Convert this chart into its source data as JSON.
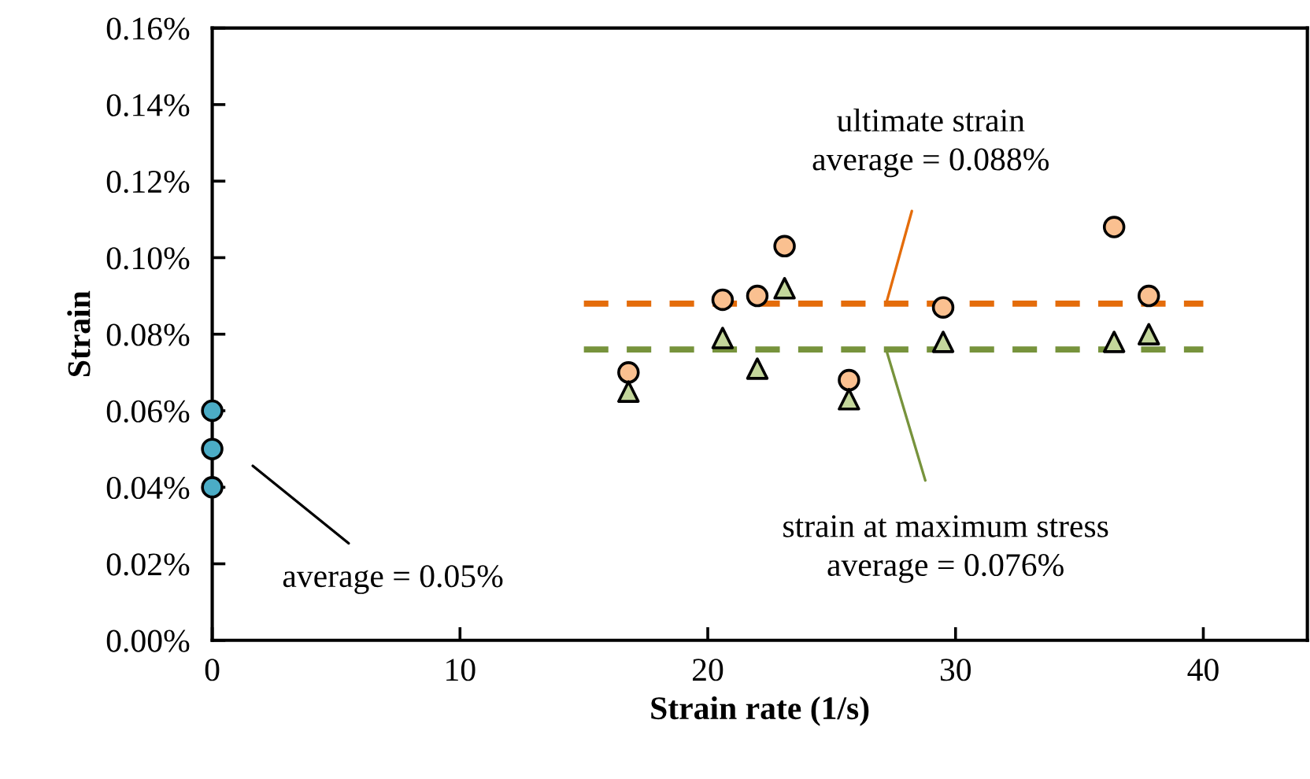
{
  "chart_data": {
    "type": "scatter",
    "xlabel": "Strain rate (1/s)",
    "ylabel": "Strain",
    "xlim": [
      0,
      44.2
    ],
    "xticks": [
      0,
      10,
      20,
      30,
      40
    ],
    "ylim": [
      0,
      0.16
    ],
    "yticks": [
      {
        "value": 0,
        "label": "0.00%"
      },
      {
        "value": 0.02,
        "label": "0.02%"
      },
      {
        "value": 0.04,
        "label": "0.04%"
      },
      {
        "value": 0.06,
        "label": "0.06%"
      },
      {
        "value": 0.08,
        "label": "0.08%"
      },
      {
        "value": 0.1,
        "label": "0.10%"
      },
      {
        "value": 0.12,
        "label": "0.12%"
      },
      {
        "value": 0.14,
        "label": "0.14%"
      },
      {
        "value": 0.16,
        "label": "0.16%"
      }
    ],
    "grid": false,
    "legend": false,
    "series": [
      {
        "marker": "circle",
        "color": "#4bacc6",
        "x": [
          0,
          0,
          0
        ],
        "values": [
          0.06,
          0.05,
          0.04
        ]
      },
      {
        "marker": "circle",
        "color": "#fac090",
        "x": [
          16.8,
          20.6,
          22.0,
          23.1,
          25.7,
          29.5,
          36.4,
          37.8
        ],
        "values": [
          0.07,
          0.089,
          0.09,
          0.103,
          0.068,
          0.087,
          0.108,
          0.09
        ]
      },
      {
        "marker": "triangle",
        "color": "#c3d69b",
        "x": [
          16.8,
          20.6,
          22.0,
          23.1,
          25.7,
          29.5,
          36.4,
          37.8
        ],
        "values": [
          0.065,
          0.079,
          0.071,
          0.092,
          0.063,
          0.078,
          0.078,
          0.08
        ]
      },
      {
        "type": "line",
        "line_style": "dashed",
        "color": "#e46c0a",
        "x": [
          15,
          40
        ],
        "values": [
          0.088,
          0.088
        ]
      },
      {
        "type": "line",
        "line_style": "dashed",
        "color": "#77933c",
        "x": [
          15,
          40
        ],
        "values": [
          0.076,
          0.076
        ]
      }
    ],
    "annotations": [
      {
        "text": "ultimate strain\naverage = 0.088%",
        "x": 27.2,
        "y": 0.088
      },
      {
        "text": "strain at maximum stress\naverage = 0.076%",
        "x": 27.2,
        "y": 0.076
      },
      "average = 0.05%"
    ]
  }
}
